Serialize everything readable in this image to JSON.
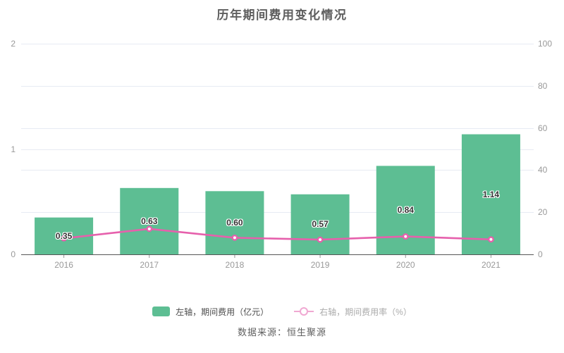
{
  "chart_data": {
    "type": "bar",
    "title": "历年期间费用变化情况",
    "categories": [
      "2016",
      "2017",
      "2018",
      "2019",
      "2020",
      "2021"
    ],
    "series": [
      {
        "name": "左轴，期间费用（亿元）",
        "type": "bar",
        "axis": "left",
        "values": [
          0.35,
          0.63,
          0.6,
          0.57,
          0.84,
          1.14
        ],
        "value_labels": [
          "0.35",
          "0.63",
          "0.60",
          "0.57",
          "0.84",
          "1.14"
        ],
        "color": "#5dbe93"
      },
      {
        "name": "右轴，期间费用率（%）",
        "type": "line",
        "axis": "right",
        "values": [
          7.6,
          12.1,
          7.9,
          7.0,
          8.5,
          7.1
        ],
        "color": "#e660ac"
      }
    ],
    "left_axis": {
      "ticks": [
        0,
        1,
        2
      ],
      "range": [
        0,
        2
      ]
    },
    "right_axis": {
      "ticks": [
        0,
        20,
        40,
        60,
        80,
        100
      ],
      "range": [
        0,
        100
      ]
    },
    "grid": true,
    "legend_position": "bottom",
    "source": "数据来源：恒生聚源",
    "colors": {
      "bar": "#5dbe93",
      "line": "#e660ac",
      "legend_line_icon": "#f0a8d2",
      "grid_line": "#e7ebf3",
      "axis_line": "#565656",
      "tick_text": "#999999",
      "value_label_text": "#333333",
      "title_text": "#5e5e5e"
    }
  }
}
